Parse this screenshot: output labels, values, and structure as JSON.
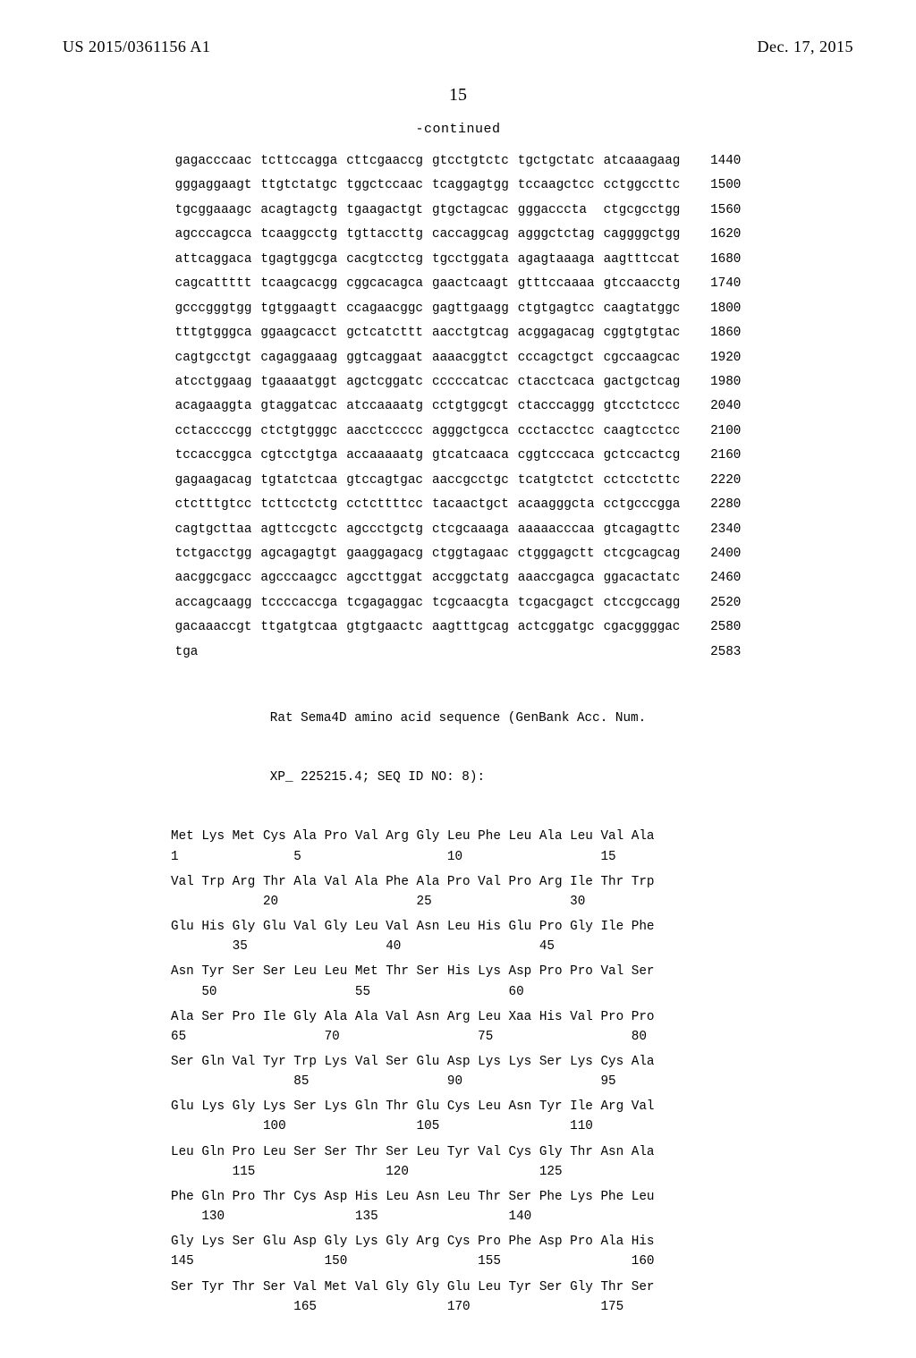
{
  "header": {
    "pubnum": "US 2015/0361156 A1",
    "date": "Dec. 17, 2015"
  },
  "pagenum": "15",
  "continued": "-continued",
  "nuc": {
    "lines": [
      {
        "g": [
          "gagacccaac",
          "tcttccagga",
          "cttcgaaccg",
          "gtcctgtctc",
          "tgctgctatc",
          "atcaaagaag"
        ],
        "n": "1440"
      },
      {
        "g": [
          "gggaggaagt",
          "ttgtctatgc",
          "tggctccaac",
          "tcaggagtgg",
          "tccaagctcc",
          "cctggccttc"
        ],
        "n": "1500"
      },
      {
        "g": [
          "tgcggaaagc",
          "acagtagctg",
          "tgaagactgt",
          "gtgctagcac",
          "gggacccta",
          "ctgcgcctgg"
        ],
        "n": "1560"
      },
      {
        "g": [
          "agcccagcca",
          "tcaaggcctg",
          "tgttaccttg",
          "caccaggcag",
          "agggctctag",
          "caggggctgg"
        ],
        "n": "1620"
      },
      {
        "g": [
          "attcaggaca",
          "tgagtggcga",
          "cacgtcctcg",
          "tgcctggata",
          "agagtaaaga",
          "aagtttccat"
        ],
        "n": "1680"
      },
      {
        "g": [
          "cagcattttt",
          "tcaagcacgg",
          "cggcacagca",
          "gaactcaagt",
          "gtttccaaaa",
          "gtccaacctg"
        ],
        "n": "1740"
      },
      {
        "g": [
          "gcccgggtgg",
          "tgtggaagtt",
          "ccagaacggc",
          "gagttgaagg",
          "ctgtgagtcc",
          "caagtatggc"
        ],
        "n": "1800"
      },
      {
        "g": [
          "tttgtgggca",
          "ggaagcacct",
          "gctcatcttt",
          "aacctgtcag",
          "acggagacag",
          "cggtgtgtac"
        ],
        "n": "1860"
      },
      {
        "g": [
          "cagtgcctgt",
          "cagaggaaag",
          "ggtcaggaat",
          "aaaacggtct",
          "cccagctgct",
          "cgccaagcac"
        ],
        "n": "1920"
      },
      {
        "g": [
          "atcctggaag",
          "tgaaaatggt",
          "agctcggatc",
          "cccccatcac",
          "ctacctcaca",
          "gactgctcag"
        ],
        "n": "1980"
      },
      {
        "g": [
          "acagaaggta",
          "gtaggatcac",
          "atccaaaatg",
          "cctgtggcgt",
          "ctacccaggg",
          "gtcctctccc"
        ],
        "n": "2040"
      },
      {
        "g": [
          "cctaccccgg",
          "ctctgtgggc",
          "aacctccccc",
          "agggctgcca",
          "ccctacctcc",
          "caagtcctcc"
        ],
        "n": "2100"
      },
      {
        "g": [
          "tccaccggca",
          "cgtcctgtga",
          "accaaaaatg",
          "gtcatcaaca",
          "cggtcccaca",
          "gctccactcg"
        ],
        "n": "2160"
      },
      {
        "g": [
          "gagaagacag",
          "tgtatctcaa",
          "gtccagtgac",
          "aaccgcctgc",
          "tcatgtctct",
          "cctcctcttc"
        ],
        "n": "2220"
      },
      {
        "g": [
          "ctctttgtcc",
          "tcttcctctg",
          "cctcttttcc",
          "tacaactgct",
          "acaagggcta",
          "cctgcccgga"
        ],
        "n": "2280"
      },
      {
        "g": [
          "cagtgcttaa",
          "agttccgctc",
          "agccctgctg",
          "ctcgcaaaga",
          "aaaaacccaa",
          "gtcagagttc"
        ],
        "n": "2340"
      },
      {
        "g": [
          "tctgacctgg",
          "agcagagtgt",
          "gaaggagacg",
          "ctggtagaac",
          "ctgggagctt",
          "ctcgcagcag"
        ],
        "n": "2400"
      },
      {
        "g": [
          "aacggcgacc",
          "agcccaagcc",
          "agccttggat",
          "accggctatg",
          "aaaccgagca",
          "ggacactatc"
        ],
        "n": "2460"
      },
      {
        "g": [
          "accagcaagg",
          "tccccaccga",
          "tcgagaggac",
          "tcgcaacgta",
          "tcgacgagct",
          "ctccgccagg"
        ],
        "n": "2520"
      },
      {
        "g": [
          "gacaaaccgt",
          "ttgatgtcaa",
          "gtgtgaactc",
          "aagtttgcag",
          "actcggatgc",
          "cgacggggac"
        ],
        "n": "2580"
      },
      {
        "g": [
          "tga",
          "",
          "",
          "",
          "",
          ""
        ],
        "n": "2583"
      }
    ]
  },
  "aaheader": {
    "l1": "Rat Sema4D amino acid sequence (GenBank Acc. Num.",
    "l2": "XP_ 225215.4; SEQ ID NO: 8):"
  },
  "aa": [
    {
      "res": "Met Lys Met Cys Ala Pro Val Arg Gly Leu Phe Leu Ala Leu Val Ala",
      "num": "1               5                   10                  15"
    },
    {
      "res": "Val Trp Arg Thr Ala Val Ala Phe Ala Pro Val Pro Arg Ile Thr Trp",
      "num": "            20                  25                  30"
    },
    {
      "res": "Glu His Gly Glu Val Gly Leu Val Asn Leu His Glu Pro Gly Ile Phe",
      "num": "        35                  40                  45"
    },
    {
      "res": "Asn Tyr Ser Ser Leu Leu Met Thr Ser His Lys Asp Pro Pro Val Ser",
      "num": "    50                  55                  60"
    },
    {
      "res": "Ala Ser Pro Ile Gly Ala Ala Val Asn Arg Leu Xaa His Val Pro Pro",
      "num": "65                  70                  75                  80"
    },
    {
      "res": "Ser Gln Val Tyr Trp Lys Val Ser Glu Asp Lys Lys Ser Lys Cys Ala",
      "num": "                85                  90                  95"
    },
    {
      "res": "Glu Lys Gly Lys Ser Lys Gln Thr Glu Cys Leu Asn Tyr Ile Arg Val",
      "num": "            100                 105                 110"
    },
    {
      "res": "Leu Gln Pro Leu Ser Ser Thr Ser Leu Tyr Val Cys Gly Thr Asn Ala",
      "num": "        115                 120                 125"
    },
    {
      "res": "Phe Gln Pro Thr Cys Asp His Leu Asn Leu Thr Ser Phe Lys Phe Leu",
      "num": "    130                 135                 140"
    },
    {
      "res": "Gly Lys Ser Glu Asp Gly Lys Gly Arg Cys Pro Phe Asp Pro Ala His",
      "num": "145                 150                 155                 160"
    },
    {
      "res": "Ser Tyr Thr Ser Val Met Val Gly Gly Glu Leu Tyr Ser Gly Thr Ser",
      "num": "                165                 170                 175"
    }
  ]
}
